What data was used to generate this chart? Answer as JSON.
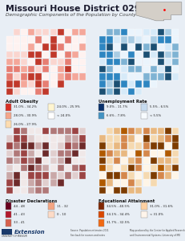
{
  "title": "Missouri House District 029",
  "subtitle": "Demographic Components of the Population by County",
  "bg_color": "#e8eef5",
  "title_bg": "#ffffff",
  "map1_colors": [
    "#c1392b",
    "#e74c3c",
    "#f1948a",
    "#fadbd8",
    "#fef9f9"
  ],
  "map2_colors": [
    "#1a237e",
    "#283593",
    "#5c6bc0",
    "#9fa8da",
    "#e8eaf6",
    "#f5f5f5"
  ],
  "map3_colors": [
    "#4a0e0e",
    "#7b1a1a",
    "#b07070",
    "#d4b0b0",
    "#e8d8d8"
  ],
  "map4_colors": [
    "#5d1a00",
    "#8b3a00",
    "#c17f3c",
    "#e8c88a",
    "#f5e8c0"
  ],
  "legend1_items": [
    [
      "#d73027",
      "31.0% - 34.2%"
    ],
    [
      "#f4a58a",
      "28.0% - 30.9%"
    ],
    [
      "#fddcb0",
      "26.0% - 27.9%"
    ],
    [
      "#fff5d0",
      "24.0% - 25.9%"
    ],
    [
      "#ffffff",
      "< 24.0%"
    ]
  ],
  "legend2_items": [
    [
      "#08306b",
      "9.0% - 11.7%"
    ],
    [
      "#4393c3",
      "6.6% - 7.8%"
    ],
    [
      "#c6dbef",
      "5.5% - 6.5%"
    ],
    [
      "#f7fbff",
      "< 5.5%"
    ]
  ],
  "legend3_items": [
    [
      "#67001f",
      "44 - 48"
    ],
    [
      "#b2182b",
      "41 - 43"
    ],
    [
      "#d6604d",
      "33 - 41"
    ],
    [
      "#f4a582",
      "11 - 32"
    ],
    [
      "#fddbc7",
      "0 - 10"
    ]
  ],
  "legend4_items": [
    [
      "#7f2704",
      "34.5% - 40.5%"
    ],
    [
      "#d94801",
      "34.1% - 34.4%"
    ],
    [
      "#f16913",
      "31.7% - 32.5%"
    ],
    [
      "#fdd0a2",
      "31.0% - 31.6%"
    ],
    [
      "#fff5eb",
      "< 31.0%"
    ]
  ]
}
